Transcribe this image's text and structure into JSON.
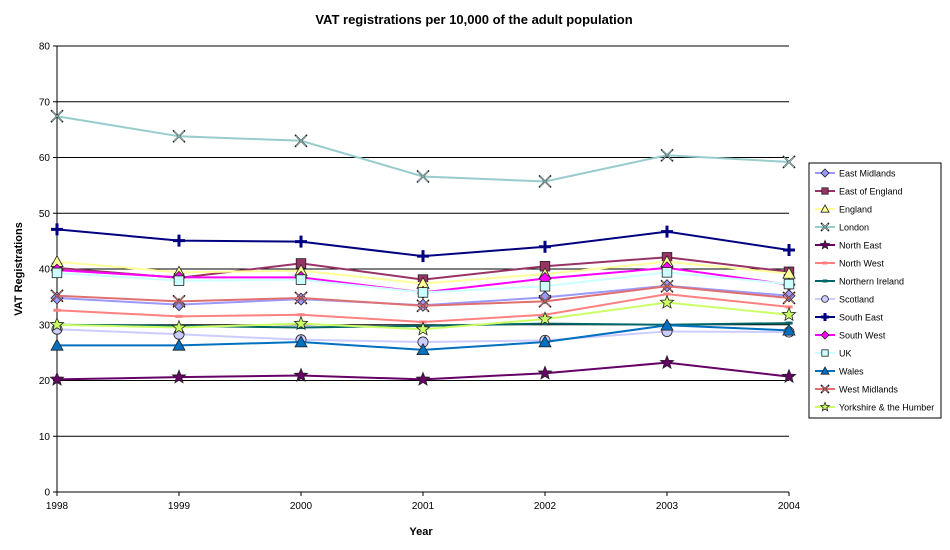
{
  "chart_data": {
    "type": "line",
    "title": "VAT registrations per 10,000 of the adult population",
    "xlabel": "Year",
    "ylabel": "VAT Registrations",
    "categories": [
      "1998",
      "1999",
      "2000",
      "2001",
      "2002",
      "2003",
      "2004"
    ],
    "ylim": [
      0,
      80
    ],
    "yticks": [
      0,
      10,
      20,
      30,
      40,
      50,
      60,
      70,
      80
    ],
    "grid": true,
    "legend_position": "right",
    "series": [
      {
        "name": "East Midlands",
        "color": "#9999ff",
        "marker": "diamond",
        "values": [
          34.8,
          33.6,
          34.6,
          33.5,
          34.9,
          37.0,
          35.2
        ]
      },
      {
        "name": "East of England",
        "color": "#993366",
        "marker": "square",
        "values": [
          40.2,
          38.4,
          41.0,
          38.1,
          40.5,
          42.1,
          39.5
        ]
      },
      {
        "name": "England",
        "color": "#ffff99",
        "marker": "triangle",
        "values": [
          41.3,
          39.4,
          39.7,
          37.4,
          39.1,
          41.3,
          39.2
        ]
      },
      {
        "name": "London",
        "color": "#99cccc",
        "marker": "x",
        "values": [
          67.4,
          63.8,
          63.0,
          56.6,
          55.7,
          60.4,
          59.2
        ]
      },
      {
        "name": "North East",
        "color": "#660066",
        "marker": "star",
        "values": [
          20.2,
          20.6,
          20.9,
          20.2,
          21.3,
          23.2,
          20.7
        ]
      },
      {
        "name": "North West",
        "color": "#ff8080",
        "marker": "dash",
        "values": [
          32.6,
          31.5,
          31.8,
          30.5,
          31.8,
          35.5,
          33.2
        ]
      },
      {
        "name": "Northern Ireland",
        "color": "#006666",
        "marker": "dash",
        "values": [
          30.0,
          29.8,
          29.5,
          29.8,
          30.2,
          30.0,
          30.3
        ]
      },
      {
        "name": "Scotland",
        "color": "#ccccff",
        "marker": "circle",
        "values": [
          29.2,
          28.3,
          27.3,
          26.9,
          27.2,
          28.8,
          28.7
        ]
      },
      {
        "name": "South East",
        "color": "#000080",
        "marker": "plus",
        "values": [
          47.1,
          45.1,
          44.9,
          42.3,
          44.0,
          46.7,
          43.4
        ]
      },
      {
        "name": "South West",
        "color": "#ff00ff",
        "marker": "diamond",
        "values": [
          39.8,
          38.5,
          38.5,
          35.8,
          38.3,
          40.2,
          37.2
        ]
      },
      {
        "name": "UK",
        "color": "#ccffff",
        "marker": "square",
        "values": [
          39.3,
          37.9,
          38.1,
          35.8,
          36.9,
          39.4,
          37.3
        ]
      },
      {
        "name": "Wales",
        "color": "#0070c0",
        "marker": "triangle",
        "values": [
          26.3,
          26.3,
          26.9,
          25.5,
          26.9,
          29.9,
          29.0
        ]
      },
      {
        "name": "West Midlands",
        "color": "#e07070",
        "marker": "x",
        "values": [
          35.2,
          34.2,
          34.8,
          33.4,
          34.2,
          36.9,
          34.8
        ]
      },
      {
        "name": "Yorkshire & the Humber",
        "color": "#ccff66",
        "marker": "star",
        "values": [
          30.0,
          29.5,
          30.2,
          29.2,
          31.0,
          34.0,
          31.8
        ]
      }
    ]
  }
}
